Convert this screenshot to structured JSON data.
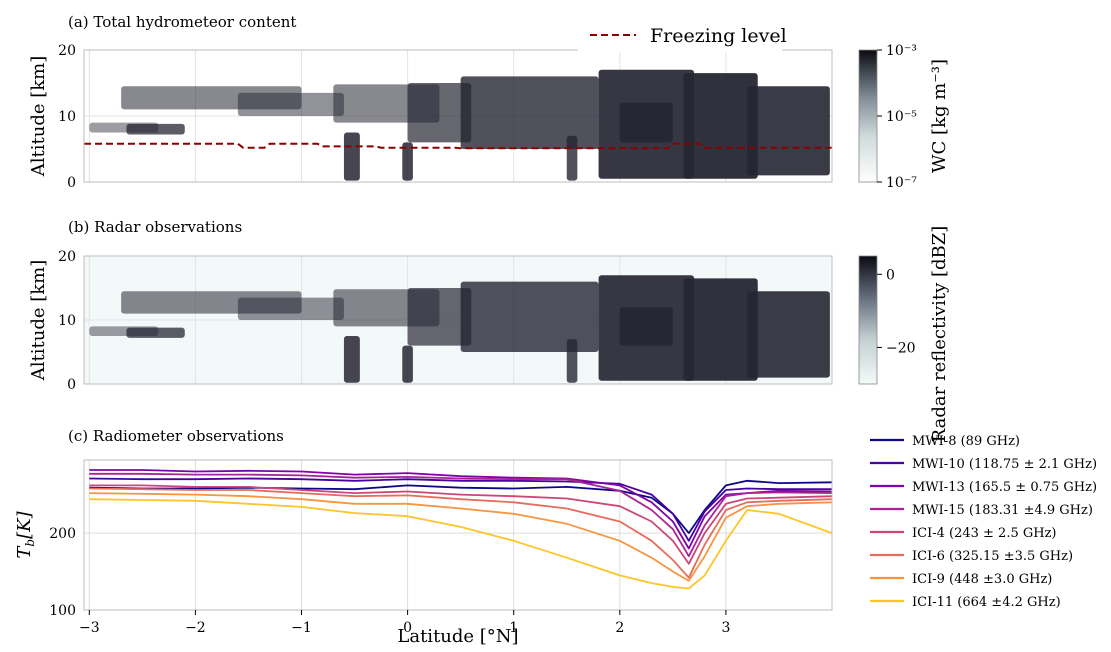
{
  "figure": {
    "panel_a_title": "(a) Total hydrometeor content",
    "panel_b_title": "(b) Radar observations",
    "panel_c_title": "(c) Radiometer observations",
    "altitude_label": "Altitude [km]",
    "tb_label": "T_b[K]",
    "latitude_label": "Latitude [°N]",
    "wc_colorbar_label": "WC [kg m⁻³]",
    "radar_colorbar_label": "Radar reflectivity [dBZ]",
    "freezing_level_label": "Freezing level",
    "colors": {
      "freezing": "#8b0000",
      "grid": "#d9d9d9",
      "dark": "#1f1f28"
    }
  },
  "chart_data": [
    {
      "type": "heatmap",
      "title": "(a) Total hydrometeor content",
      "xlabel": "",
      "ylabel": "Altitude [km]",
      "xlim": [
        -3.05,
        4.0
      ],
      "ylim": [
        0,
        20
      ],
      "yticks": [
        "0",
        "10",
        "20"
      ],
      "colorbar": {
        "label": "WC [kg m⁻³]",
        "ticks": [
          "10⁻⁷",
          "10⁻⁵",
          "10⁻³"
        ],
        "scale": "log"
      },
      "freezing_level": {
        "label": "Freezing level",
        "x": [
          -3.05,
          -1.6,
          -1.55,
          -1.35,
          -1.3,
          -0.85,
          -0.8,
          -0.3,
          -0.25,
          0.45,
          0.5,
          2.45,
          2.5,
          2.75,
          2.8,
          4.0
        ],
        "y": [
          5.8,
          5.8,
          5.2,
          5.2,
          5.8,
          5.8,
          5.4,
          5.4,
          5.2,
          5.2,
          5.1,
          5.1,
          5.8,
          5.8,
          5.2,
          5.2
        ]
      },
      "grid": true,
      "legend_position": "top-center"
    },
    {
      "type": "heatmap",
      "title": "(b) Radar observations",
      "xlabel": "",
      "ylabel": "Altitude [km]",
      "xlim": [
        -3.05,
        4.0
      ],
      "ylim": [
        0,
        20
      ],
      "yticks": [
        "0",
        "10",
        "20"
      ],
      "colorbar": {
        "label": "Radar reflectivity [dBZ]",
        "ticks": [
          "−20",
          "0"
        ],
        "range": [
          -30,
          5
        ]
      },
      "grid": true
    },
    {
      "type": "line",
      "title": "(c) Radiometer observations",
      "xlabel": "Latitude [°N]",
      "ylabel": "T_b[K]",
      "xlim": [
        -3.05,
        4.0
      ],
      "ylim": [
        100,
        295
      ],
      "xticks": [
        "−3",
        "−2",
        "−1",
        "0",
        "1",
        "2",
        "3"
      ],
      "yticks": [
        "100",
        "200"
      ],
      "grid": true,
      "legend_position": "right",
      "x": [
        -3.0,
        -2.5,
        -2.0,
        -1.5,
        -1.0,
        -0.5,
        0.0,
        0.5,
        1.0,
        1.5,
        2.0,
        2.3,
        2.5,
        2.65,
        2.8,
        3.0,
        3.2,
        3.5,
        4.0
      ],
      "series": [
        {
          "name": "MWI-8 (89 GHz)",
          "color": "#0d0887",
          "values": [
            259,
            258,
            258,
            259,
            258,
            257,
            262,
            259,
            258,
            260,
            255,
            246,
            225,
            200,
            230,
            262,
            268,
            265,
            266
          ]
        },
        {
          "name": "MWI-10 (118.75 ± 2.1 GHz)",
          "color": "#47039f",
          "values": [
            271,
            270,
            270,
            271,
            270,
            268,
            270,
            268,
            268,
            267,
            264,
            250,
            225,
            190,
            228,
            256,
            258,
            257,
            257
          ]
        },
        {
          "name": "MWI-13 (165.5 ± 0.75 GHz)",
          "color": "#7e03a8",
          "values": [
            282,
            282,
            280,
            281,
            280,
            276,
            278,
            274,
            272,
            271,
            262,
            240,
            215,
            180,
            222,
            250,
            252,
            255,
            254
          ]
        },
        {
          "name": "MWI-15 (183.31 ±4.9 GHz)",
          "color": "#a92395",
          "values": [
            277,
            277,
            276,
            276,
            275,
            272,
            273,
            271,
            270,
            270,
            255,
            230,
            205,
            170,
            210,
            248,
            252,
            253,
            252
          ]
        },
        {
          "name": "ICI-4 (243 ± 2.5 GHz)",
          "color": "#cc4778",
          "values": [
            262,
            262,
            260,
            260,
            256,
            252,
            254,
            250,
            248,
            245,
            235,
            215,
            190,
            160,
            200,
            238,
            245,
            246,
            248
          ]
        },
        {
          "name": "ICI-6 (325.15 ±3.5 GHz)",
          "color": "#e66c5c",
          "values": [
            258,
            257,
            256,
            256,
            252,
            248,
            249,
            244,
            240,
            232,
            215,
            190,
            165,
            142,
            185,
            230,
            240,
            242,
            244
          ]
        },
        {
          "name": "ICI-9 (448 ±3.0 GHz)",
          "color": "#f89540",
          "values": [
            252,
            251,
            250,
            248,
            244,
            238,
            238,
            232,
            225,
            212,
            190,
            168,
            150,
            138,
            170,
            220,
            235,
            238,
            240
          ]
        },
        {
          "name": "ICI-11 (664 ±4.2 GHz)",
          "color": "#fdc527",
          "values": [
            244,
            243,
            242,
            238,
            234,
            226,
            222,
            208,
            190,
            168,
            145,
            135,
            130,
            128,
            145,
            190,
            230,
            225,
            200
          ]
        }
      ]
    }
  ]
}
